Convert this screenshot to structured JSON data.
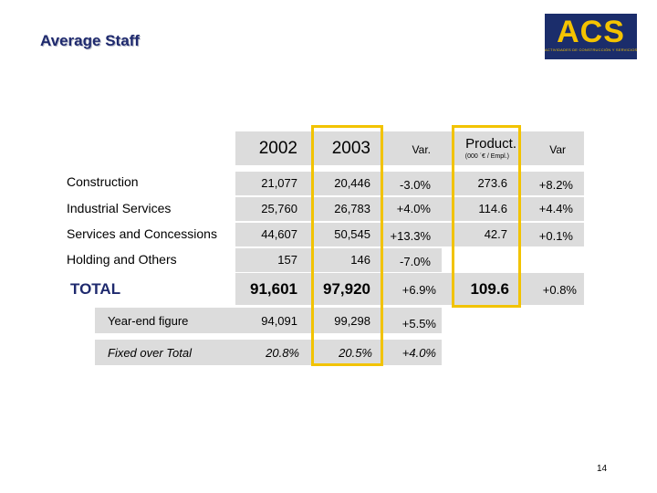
{
  "title": "Average Staff",
  "logo": {
    "name": "ACS",
    "subtitle": "ACTIVIDADES DE CONSTRUCCIÓN Y SERVICIOS"
  },
  "header": {
    "year1": "2002",
    "year2": "2003",
    "var": "Var.",
    "product": "Product.",
    "product_unit": "(000 ´€ / Empl.)",
    "product_var": "Var"
  },
  "rows": [
    {
      "label": "Construction",
      "y2002": "21,077",
      "y2003": "20,446",
      "var": "-3.0%",
      "product": "273.6",
      "product_var": "+8.2%"
    },
    {
      "label": "Industrial Services",
      "y2002": "25,760",
      "y2003": "26,783",
      "var": "+4.0%",
      "product": "114.6",
      "product_var": "+4.4%"
    },
    {
      "label": "Services and Concessions",
      "y2002": "44,607",
      "y2003": "50,545",
      "var": "+13.3%",
      "product": "42.7",
      "product_var": "+0.1%"
    },
    {
      "label": "Holding and Others",
      "y2002": "157",
      "y2003": "146",
      "var": "-7.0%"
    }
  ],
  "total": {
    "label": "TOTAL",
    "y2002": "91,601",
    "y2003": "97,920",
    "var": "+6.9%",
    "product": "109.6",
    "product_var": "+0.8%"
  },
  "sub_rows": [
    {
      "label": "Year-end figure",
      "y2002": "94,091",
      "y2003": "99,298",
      "var": "+5.5%"
    },
    {
      "label": "Fixed over Total",
      "y2002": "20.8%",
      "y2003": "20.5%",
      "var": "+4.0%"
    }
  ],
  "page_number": "14",
  "colors": {
    "title": "#1f2a6e",
    "highlight": "#f2c300",
    "panel": "#dcdcdc",
    "logo_bg": "#1b2d6b",
    "logo_fg": "#f4c300"
  }
}
